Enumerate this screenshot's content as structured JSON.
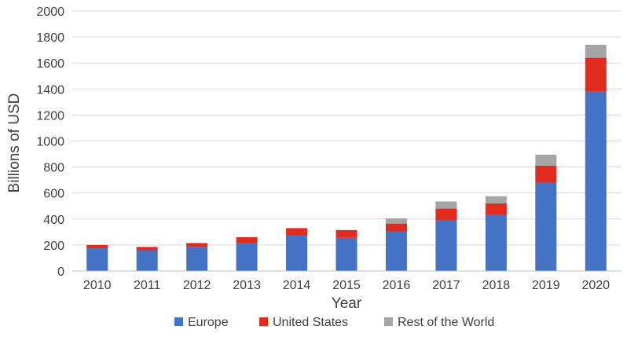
{
  "chart_data": {
    "type": "bar",
    "stacked": true,
    "categories": [
      "2010",
      "2011",
      "2012",
      "2013",
      "2014",
      "2015",
      "2016",
      "2017",
      "2018",
      "2019",
      "2020"
    ],
    "series": [
      {
        "name": "Europe",
        "color": "#4472c4",
        "values": [
          175,
          160,
          185,
          215,
          275,
          255,
          305,
          390,
          435,
          680,
          1380
        ]
      },
      {
        "name": "United States",
        "color": "#e02b20",
        "values": [
          25,
          25,
          30,
          45,
          55,
          60,
          60,
          90,
          85,
          130,
          260
        ]
      },
      {
        "name": "Rest of the World",
        "color": "#a5a5a5",
        "values": [
          0,
          0,
          0,
          0,
          0,
          0,
          40,
          55,
          55,
          85,
          100
        ]
      }
    ],
    "title": "",
    "xlabel": "Year",
    "ylabel": "Billions of USD",
    "ylim": [
      0,
      2000
    ],
    "yticks": [
      0,
      200,
      400,
      600,
      800,
      1000,
      1200,
      1400,
      1600,
      1800,
      2000
    ],
    "grid": true,
    "legend_position": "bottom"
  }
}
